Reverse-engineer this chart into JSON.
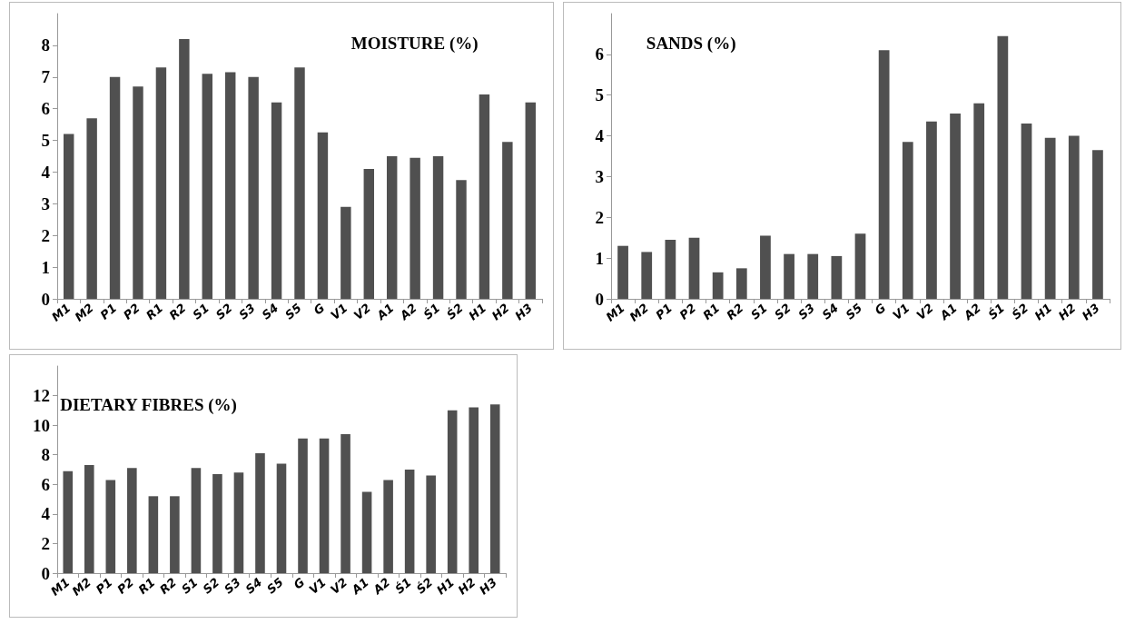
{
  "chart_data": [
    {
      "type": "bar",
      "title": "MOISTURE (%)",
      "categories": [
        "M1",
        "M2",
        "P1",
        "P2",
        "R1",
        "R2",
        "S1",
        "S2",
        "S3",
        "S4",
        "S5",
        "G",
        "V1",
        "V2",
        "A1",
        "A2",
        "Ś1",
        "Ś2",
        "H1",
        "H2",
        "H3"
      ],
      "values": [
        5.2,
        5.7,
        7.0,
        6.7,
        7.3,
        8.2,
        7.1,
        7.15,
        7.0,
        6.2,
        7.3,
        5.25,
        2.9,
        4.1,
        4.5,
        4.45,
        4.5,
        3.75,
        6.45,
        4.95,
        6.2
      ],
      "color": "#505050",
      "ylim": [
        0,
        9
      ],
      "yticks": [
        0,
        1,
        2,
        3,
        4,
        5,
        6,
        7,
        8
      ]
    },
    {
      "type": "bar",
      "title": "SANDS (%)",
      "categories": [
        "M1",
        "M2",
        "P1",
        "P2",
        "R1",
        "R2",
        "S1",
        "S2",
        "S3",
        "S4",
        "S5",
        "G",
        "V1",
        "V2",
        "A1",
        "A2",
        "Ś1",
        "Ś2",
        "H1",
        "H2",
        "H3"
      ],
      "values": [
        1.3,
        1.15,
        1.45,
        1.5,
        0.65,
        0.75,
        1.55,
        1.1,
        1.1,
        1.05,
        1.6,
        6.1,
        3.85,
        4.35,
        4.55,
        4.8,
        6.45,
        4.3,
        3.95,
        4.0,
        3.65
      ],
      "color": "#505050",
      "ylim": [
        0,
        7
      ],
      "yticks": [
        0,
        1,
        2,
        3,
        4,
        5,
        6
      ]
    },
    {
      "type": "bar",
      "title": "DIETARY FIBRES (%)",
      "categories": [
        "M1",
        "M2",
        "P1",
        "P2",
        "R1",
        "R2",
        "S1",
        "S2",
        "S3",
        "S4",
        "S5",
        "G",
        "V1",
        "V2",
        "A1",
        "A2",
        "Ś1",
        "Ś2",
        "H1",
        "H2",
        "H3"
      ],
      "values": [
        6.9,
        7.3,
        6.3,
        7.1,
        5.2,
        5.2,
        7.1,
        6.7,
        6.8,
        8.1,
        7.4,
        9.1,
        9.1,
        9.4,
        5.5,
        6.3,
        7.0,
        6.6,
        11.0,
        11.2,
        11.4
      ],
      "color": "#505050",
      "ylim": [
        0,
        14
      ],
      "yticks": [
        0,
        2,
        4,
        6,
        8,
        10,
        12
      ]
    }
  ]
}
